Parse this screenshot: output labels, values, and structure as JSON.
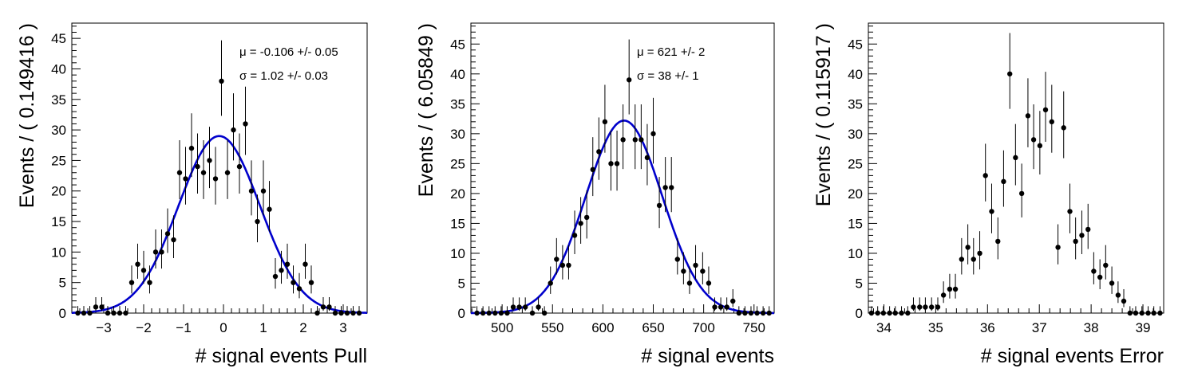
{
  "chart_data": [
    {
      "type": "scatter",
      "xlabel": "# signal events Pull",
      "ylabel": "Events / ( 0.149416 )",
      "xlim": [
        -3.8,
        3.6
      ],
      "ylim": [
        0,
        47.5
      ],
      "xticks": [
        -3,
        -2,
        -1,
        0,
        1,
        2,
        3
      ],
      "yticks": [
        0,
        5,
        10,
        15,
        20,
        25,
        30,
        35,
        40,
        45
      ],
      "grid": false,
      "fit_color": "#0000cc",
      "annotations": [
        "μ = -0.106 +/- 0.05",
        "σ =  1.02 +/- 0.03"
      ],
      "fit": {
        "mu": -0.106,
        "sigma": 1.02,
        "amplitude": 29.0
      },
      "x": [
        -3.65,
        -3.5,
        -3.35,
        -3.2,
        -3.05,
        -2.9,
        -2.75,
        -2.6,
        -2.45,
        -2.3,
        -2.15,
        -2.0,
        -1.85,
        -1.7,
        -1.55,
        -1.4,
        -1.25,
        -1.1,
        -0.95,
        -0.8,
        -0.65,
        -0.5,
        -0.35,
        -0.2,
        -0.05,
        0.1,
        0.25,
        0.4,
        0.55,
        0.7,
        0.85,
        1.0,
        1.15,
        1.3,
        1.45,
        1.6,
        1.75,
        1.9,
        2.05,
        2.2,
        2.35,
        2.5,
        2.65,
        2.8,
        2.95,
        3.1,
        3.25,
        3.4
      ],
      "y": [
        0,
        0,
        0,
        1,
        1,
        0,
        0,
        0,
        0,
        5,
        8,
        7,
        5,
        10,
        10,
        13,
        12,
        23,
        22,
        27,
        24,
        23,
        25,
        22,
        38,
        23,
        30,
        24,
        31,
        20,
        15,
        20,
        17,
        6,
        7,
        8,
        5,
        4,
        8,
        5,
        0,
        1,
        1,
        0,
        0,
        0,
        0,
        0
      ]
    },
    {
      "type": "scatter",
      "xlabel": "# signal events",
      "ylabel": "Events / ( 6.05849 )",
      "xlim": [
        469,
        770
      ],
      "ylim": [
        0,
        48.5
      ],
      "xticks": [
        500,
        550,
        600,
        650,
        700,
        750
      ],
      "yticks": [
        0,
        5,
        10,
        15,
        20,
        25,
        30,
        35,
        40,
        45
      ],
      "grid": false,
      "fit_color": "#0000cc",
      "annotations": [
        "μ =  621 +/- 2",
        "σ =  38 +/- 1"
      ],
      "fit": {
        "mu": 621,
        "sigma": 38,
        "amplitude": 32.2
      },
      "x": [
        475,
        481,
        487,
        493,
        499,
        505,
        511,
        517,
        523,
        530,
        536,
        542,
        548,
        554,
        560,
        566,
        572,
        578,
        584,
        590,
        596,
        602,
        608,
        614,
        620,
        626,
        632,
        638,
        644,
        650,
        656,
        662,
        668,
        674,
        680,
        686,
        692,
        699,
        705,
        711,
        717,
        723,
        729,
        735,
        741,
        747,
        753,
        759,
        765
      ],
      "y": [
        0,
        0,
        0,
        0,
        0,
        0,
        1,
        1,
        1,
        0,
        1,
        0,
        5,
        9,
        8,
        8,
        13,
        15,
        16,
        24,
        27,
        32,
        25,
        25,
        29,
        39,
        29,
        29,
        26,
        30,
        18,
        21,
        21,
        9,
        7,
        5,
        8,
        7,
        5,
        1,
        1,
        1,
        2,
        0,
        0,
        0,
        0,
        0,
        0
      ]
    },
    {
      "type": "scatter",
      "xlabel": "# signal events Error",
      "ylabel": "Events / ( 0.115917 )",
      "xlim": [
        33.7,
        39.4
      ],
      "ylim": [
        0,
        48.5
      ],
      "xticks": [
        34,
        35,
        36,
        37,
        38,
        39
      ],
      "yticks": [
        0,
        5,
        10,
        15,
        20,
        25,
        30,
        35,
        40,
        45
      ],
      "grid": false,
      "annotations": [],
      "x": [
        33.76,
        33.88,
        33.99,
        34.11,
        34.22,
        34.34,
        34.46,
        34.57,
        34.69,
        34.8,
        34.92,
        35.04,
        35.15,
        35.27,
        35.38,
        35.5,
        35.62,
        35.73,
        35.85,
        35.96,
        36.08,
        36.2,
        36.31,
        36.43,
        36.54,
        36.66,
        36.78,
        36.89,
        37.01,
        37.12,
        37.24,
        37.36,
        37.47,
        37.59,
        37.7,
        37.82,
        37.94,
        38.05,
        38.17,
        38.28,
        38.4,
        38.52,
        38.63,
        38.75,
        38.86,
        38.98,
        39.1,
        39.21,
        39.33
      ],
      "y": [
        0,
        0,
        0,
        0,
        0,
        0,
        0,
        1,
        1,
        1,
        1,
        1,
        3,
        4,
        4,
        9,
        11,
        9,
        10,
        23,
        17,
        12,
        22,
        40,
        26,
        20,
        33,
        29,
        28,
        34,
        32,
        11,
        31,
        17,
        12,
        13,
        14,
        7,
        6,
        8,
        5,
        3,
        2,
        0,
        0,
        0,
        0,
        0,
        0
      ]
    }
  ]
}
